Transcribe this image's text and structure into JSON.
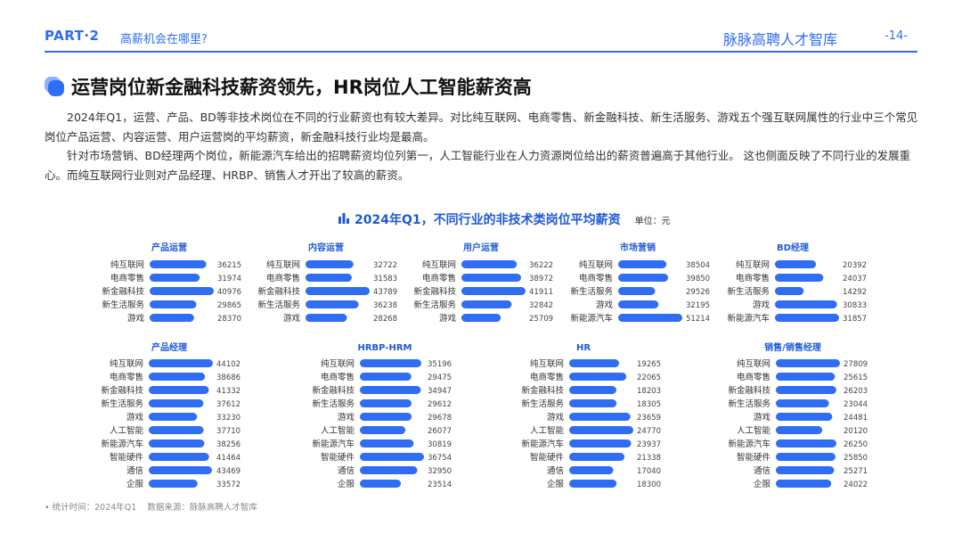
{
  "header": {
    "part": "PART·2",
    "subtitle": "高薪机会在哪里?",
    "brand": "脉脉高聘人才智库",
    "page": "-14-"
  },
  "main": {
    "title": "运营岗位新金融科技薪资领先，HR岗位人工智能薪资高",
    "paragraph1": "2024年Q1，运营、产品、BD等非技术岗位在不同的行业薪资也有较大差异。对比纯互联网、电商零售、新金融科技、新生活服务、游戏五个强互联网属性的行业中三个常见岗位产品运营、内容运营、用户运营岗的平均薪资，新金融科技行业均是最高。",
    "paragraph2": "针对市场营销、BD经理两个岗位，新能源汽车给出的招聘薪资均位列第一，人工智能行业在人力资源岗位给出的薪资普遍高于其他行业。 这也侧面反映了不同行业的发展重心。而纯互联网行业则对产品经理、HRBP、销售人才开出了较高的薪资。"
  },
  "chart_title": "2024年Q1，不同行业的非技术类岗位平均薪资",
  "chart_unit": "单位：元",
  "colors": {
    "accent": "#2f6df5",
    "bar": "#2f6df5",
    "title": "#1f5ad6"
  },
  "chart_data": [
    {
      "type": "bar",
      "orientation": "horizontal",
      "title": "产品运营",
      "categories": [
        "纯互联网",
        "电商零售",
        "新金融科技",
        "新生活服务",
        "游戏"
      ],
      "values": [
        36215,
        31974,
        40976,
        29865,
        28370
      ]
    },
    {
      "type": "bar",
      "orientation": "horizontal",
      "title": "内容运营",
      "categories": [
        "纯互联网",
        "电商零售",
        "新金融科技",
        "新生活服务",
        "游戏"
      ],
      "values": [
        32722,
        31583,
        43789,
        36238,
        28268
      ]
    },
    {
      "type": "bar",
      "orientation": "horizontal",
      "title": "用户运营",
      "categories": [
        "纯互联网",
        "电商零售",
        "新金融科技",
        "新生活服务",
        "游戏"
      ],
      "values": [
        36222,
        38972,
        41911,
        32842,
        25709
      ]
    },
    {
      "type": "bar",
      "orientation": "horizontal",
      "title": "市场营销",
      "categories": [
        "纯互联网",
        "电商零售",
        "新生活服务",
        "游戏",
        "新能源汽车"
      ],
      "values": [
        38504,
        39850,
        29526,
        32195,
        51214
      ]
    },
    {
      "type": "bar",
      "orientation": "horizontal",
      "title": "BD经理",
      "categories": [
        "纯互联网",
        "电商零售",
        "新生活服务",
        "游戏",
        "新能源汽车"
      ],
      "values": [
        20392,
        24037,
        14292,
        30833,
        31857
      ]
    },
    {
      "type": "bar",
      "orientation": "horizontal",
      "title": "产品经理",
      "categories": [
        "纯互联网",
        "电商零售",
        "新金融科技",
        "新生活服务",
        "游戏",
        "人工智能",
        "新能源汽车",
        "智能硬件",
        "通信",
        "企服"
      ],
      "values": [
        44102,
        38686,
        41332,
        37612,
        33230,
        37710,
        38256,
        41464,
        43469,
        33572
      ]
    },
    {
      "type": "bar",
      "orientation": "horizontal",
      "title": "HRBP-HRM",
      "categories": [
        "纯互联网",
        "电商零售",
        "新金融科技",
        "新生活服务",
        "游戏",
        "人工智能",
        "新能源汽车",
        "智能硬件",
        "通信",
        "企服"
      ],
      "values": [
        35196,
        29475,
        34947,
        29612,
        29678,
        26077,
        30819,
        36754,
        32950,
        23514
      ]
    },
    {
      "type": "bar",
      "orientation": "horizontal",
      "title": "HR",
      "categories": [
        "纯互联网",
        "电商零售",
        "新金融科技",
        "新生活服务",
        "游戏",
        "人工智能",
        "新能源汽车",
        "智能硬件",
        "通信",
        "企服"
      ],
      "values": [
        19265,
        22065,
        18203,
        18305,
        23659,
        24770,
        23937,
        21338,
        17040,
        18300
      ]
    },
    {
      "type": "bar",
      "orientation": "horizontal",
      "title": "销售/销售经理",
      "categories": [
        "纯互联网",
        "电商零售",
        "新金融科技",
        "新生活服务",
        "游戏",
        "人工智能",
        "新能源汽车",
        "智能硬件",
        "通信",
        "企服"
      ],
      "values": [
        27809,
        25615,
        26203,
        23044,
        24481,
        20120,
        26250,
        25850,
        25271,
        24022
      ]
    }
  ],
  "footer": {
    "time": "统计时间：2024年Q1",
    "source": "数据来源：脉脉高聘人才智库"
  }
}
